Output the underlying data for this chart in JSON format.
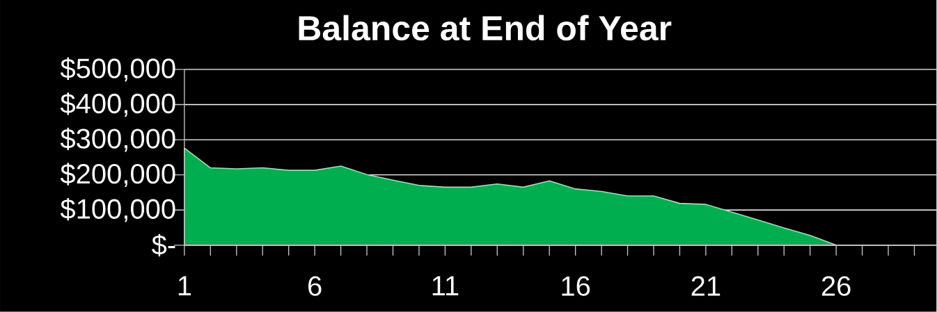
{
  "chart_data": {
    "type": "area",
    "title": "Balance at End of Year",
    "categories": [
      "1",
      null,
      null,
      null,
      null,
      "6",
      null,
      null,
      null,
      null,
      "11",
      null,
      null,
      null,
      null,
      "16",
      null,
      null,
      null,
      null,
      "21",
      null,
      null,
      null,
      null,
      "26",
      null,
      null,
      null
    ],
    "values": [
      276000,
      220000,
      217000,
      220000,
      213000,
      213000,
      225000,
      201000,
      185000,
      170000,
      165000,
      165000,
      174000,
      165000,
      183000,
      160000,
      153000,
      140000,
      140000,
      119000,
      116000,
      94000,
      72000,
      49000,
      28000,
      0,
      0,
      0,
      0
    ],
    "color": "#00ad4f",
    "ylim": [
      0,
      500000
    ],
    "yticks": [
      {
        "value": 0,
        "label": "$-"
      },
      {
        "value": 100000,
        "label": "$100,000"
      },
      {
        "value": 200000,
        "label": "$200,000"
      },
      {
        "value": 300000,
        "label": "$300,000"
      },
      {
        "value": 400000,
        "label": "$400,000"
      },
      {
        "value": 500000,
        "label": "$500,000"
      }
    ],
    "grid": "y"
  }
}
